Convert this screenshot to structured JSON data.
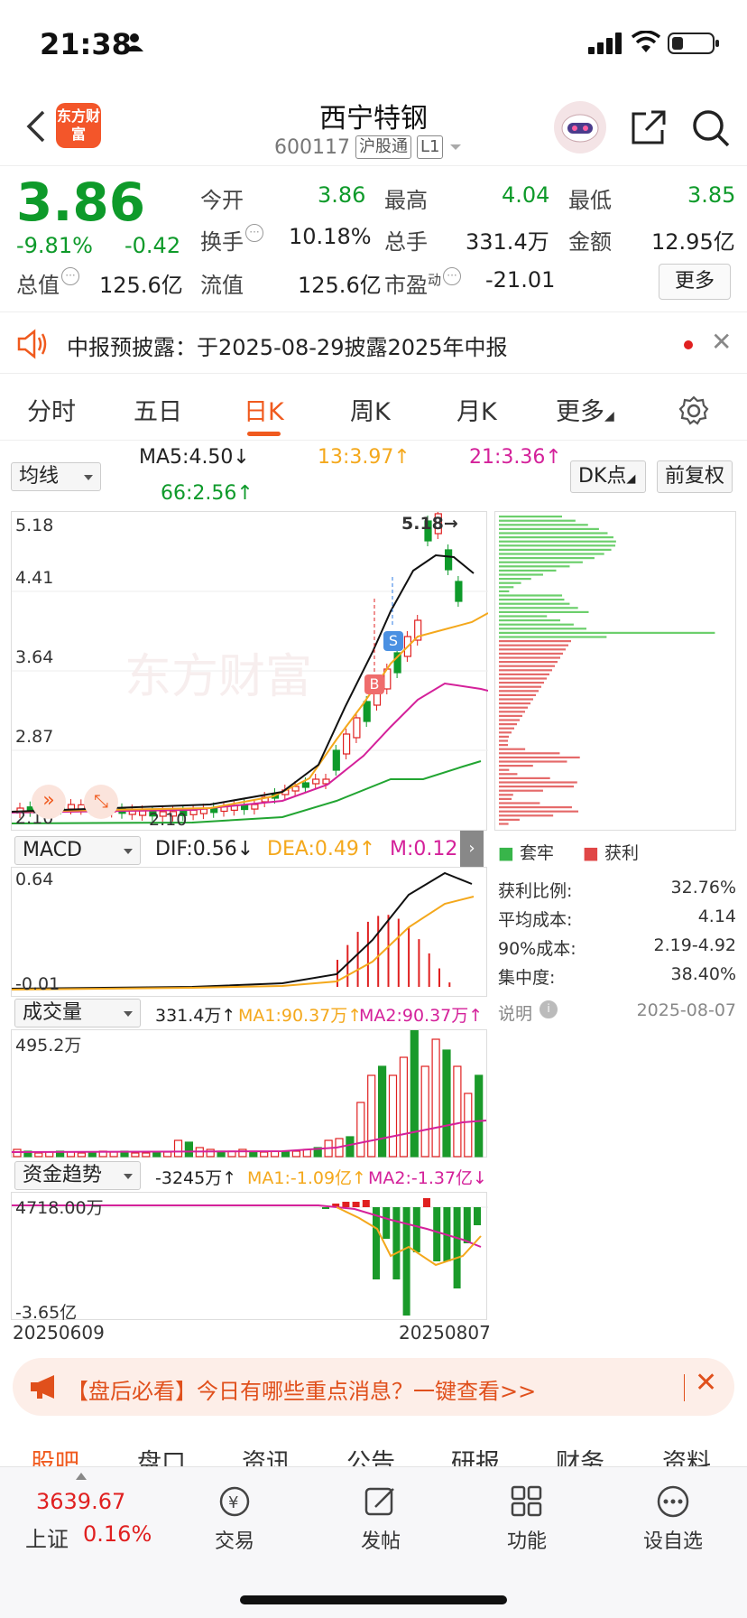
{
  "status": {
    "time": "21:38"
  },
  "header": {
    "logo_text": "东方财富",
    "title": "西宁特钢",
    "code": "600117",
    "tag1": "沪股通",
    "tag2": "L1"
  },
  "quote": {
    "price": "3.86",
    "change_pct": "-9.81%",
    "change": "-0.42",
    "open_label": "今开",
    "open": "3.86",
    "high_label": "最高",
    "high": "4.04",
    "low_label": "最低",
    "low": "3.85",
    "turnover_label": "换手",
    "turnover": "10.18%",
    "volume_label": "总手",
    "volume": "331.4万",
    "amount_label": "金额",
    "amount": "12.95亿",
    "mcap_label": "总值",
    "mcap": "125.6亿",
    "float_label": "流值",
    "float": "125.6亿",
    "pe_label": "市盈",
    "pe_sup": "动",
    "pe": "-21.01",
    "more_label": "更多"
  },
  "notice": {
    "text": "中报预披露：于2025-08-29披露2025年中报"
  },
  "tabs": [
    "分时",
    "五日",
    "日K",
    "周K",
    "月K",
    "更多"
  ],
  "active_tab": 2,
  "kline": {
    "ma_selector": "均线",
    "ma5": "MA5:4.50↓",
    "ma13": "13:3.97↑",
    "ma21": "21:3.36↑",
    "ma66": "66:2.56↑",
    "dk_label": "DK点",
    "fq_label": "前复权",
    "y_labels": [
      "5.18",
      "4.41",
      "3.64",
      "2.87",
      "2.10"
    ],
    "high_mark": "5.18",
    "low_mark": "2.10",
    "watermark": "东方财富",
    "b_mark": "B",
    "s_mark": "S"
  },
  "macd": {
    "selector": "MACD",
    "dif": "DIF:0.56↓",
    "dea": "DEA:0.49↑",
    "m": "M:0.12↓",
    "top": "0.64",
    "bottom": "-0.01"
  },
  "volume": {
    "selector": "成交量",
    "val": "331.4万↑",
    "ma1": "MA1:90.37万↑",
    "ma2": "MA2:90.37万↑",
    "top": "495.2万"
  },
  "funds": {
    "selector": "资金趋势",
    "val": "-3245万↑",
    "ma1": "MA1:-1.09亿↑",
    "ma2": "MA2:-1.37亿↓",
    "top": "4718.00万",
    "bottom": "-3.65亿",
    "date_start": "20250609",
    "date_end": "20250807"
  },
  "chips": {
    "legend1": "套牢",
    "legend2": "获利",
    "rows": [
      {
        "label": "获利比例:",
        "value": "32.76%"
      },
      {
        "label": "平均成本:",
        "value": "4.14"
      },
      {
        "label": "90%成本:",
        "value": "2.19-4.92"
      },
      {
        "label": "集中度:",
        "value": "38.40%"
      }
    ],
    "note_label": "说明",
    "date": "2025-08-07"
  },
  "banner": {
    "text": "【盘后必看】今日有哪些重点消息？一键查看>>"
  },
  "bottom_tabs": [
    "股吧",
    "盘口",
    "资讯",
    "公告",
    "研报",
    "财务",
    "资料"
  ],
  "bottom_bar": {
    "index_value": "3639.67",
    "index_name": "上证",
    "index_pct": "0.16%",
    "items": [
      "交易",
      "发帖",
      "功能",
      "设自选"
    ]
  },
  "colors": {
    "up": "#e02020",
    "down": "#0e9a2a",
    "accent": "#f05a1e"
  },
  "chart_data": {
    "type": "candlestick",
    "x_range": [
      "20250609",
      "20250807"
    ],
    "ylim": [
      2.1,
      5.18
    ],
    "last_close": 3.86,
    "ma": {
      "MA5": 4.5,
      "MA13": 3.97,
      "MA21": 3.36,
      "MA66": 2.56
    }
  }
}
